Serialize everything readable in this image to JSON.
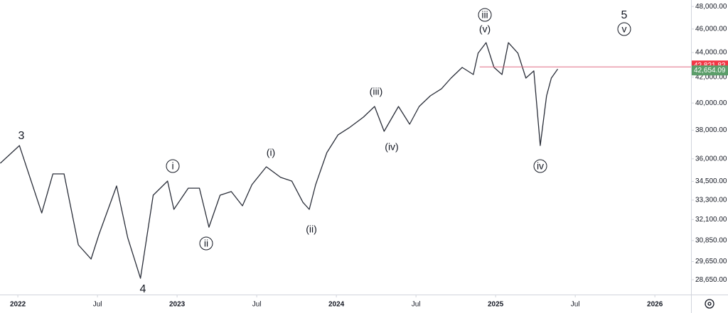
{
  "chart_data": {
    "type": "line",
    "x": [
      2021.89,
      2022.01,
      2022.15,
      2022.22,
      2022.29,
      2022.38,
      2022.46,
      2022.51,
      2022.62,
      2022.69,
      2022.77,
      2022.85,
      2022.94,
      2022.98,
      2023.07,
      2023.14,
      2023.2,
      2023.27,
      2023.34,
      2023.41,
      2023.47,
      2023.56,
      2023.65,
      2023.72,
      2023.79,
      2023.83,
      2023.87,
      2023.94,
      2024.01,
      2024.08,
      2024.17,
      2024.24,
      2024.3,
      2024.39,
      2024.46,
      2024.52,
      2024.59,
      2024.66,
      2024.72,
      2024.79,
      2024.86,
      2024.89,
      2024.94,
      2024.99,
      2025.04,
      2025.08,
      2025.14,
      2025.19,
      2025.24,
      2025.28,
      2025.32,
      2025.35,
      2025.39
    ],
    "series": [
      {
        "color": "#2a2e39",
        "values": [
          35700,
          36910,
          32500,
          34990,
          34990,
          30600,
          29790,
          31220,
          34200,
          31010,
          28730,
          33610,
          34520,
          32720,
          34060,
          34060,
          31640,
          33610,
          33840,
          32940,
          34290,
          35460,
          34760,
          34520,
          33160,
          32720,
          34290,
          36420,
          37660,
          38170,
          38950,
          39740,
          37920,
          39740,
          38430,
          39740,
          40550,
          41090,
          41930,
          42780,
          42210,
          43950,
          44830,
          42780,
          42210,
          44830,
          43950,
          41930,
          42500,
          36910,
          40550,
          41930,
          42654.09
        ]
      }
    ],
    "log_scale": true,
    "xlim": [
      2021.888,
      2026.227
    ],
    "xticks": [
      {
        "value": 2022,
        "label": "2022"
      },
      {
        "value": 2022.5,
        "label": "Jul"
      },
      {
        "value": 2023,
        "label": "2023"
      },
      {
        "value": 2023.5,
        "label": "Jul"
      },
      {
        "value": 2024,
        "label": "2024"
      },
      {
        "value": 2024.5,
        "label": "Jul"
      },
      {
        "value": 2025,
        "label": "2025"
      },
      {
        "value": 2025.5,
        "label": "Jul"
      },
      {
        "value": 2026,
        "label": "2026"
      }
    ],
    "ylim": [
      27860,
      48590
    ],
    "yticks": [
      {
        "value": 48000,
        "label": "48,000.00"
      },
      {
        "value": 46000,
        "label": "46,000.00"
      },
      {
        "value": 44000,
        "label": "44,000.00"
      },
      {
        "value": 42000,
        "label": "42,000.00"
      },
      {
        "value": 40000,
        "label": "40,000.00"
      },
      {
        "value": 38000,
        "label": "38,000.00"
      },
      {
        "value": 36000,
        "label": "36,000.00"
      },
      {
        "value": 34500,
        "label": "34,500.00"
      },
      {
        "value": 33300,
        "label": "33,300.00"
      },
      {
        "value": 32100,
        "label": "32,100.00"
      },
      {
        "value": 30850,
        "label": "30,850.00"
      },
      {
        "value": 29650,
        "label": "29,650.00"
      },
      {
        "value": 28650,
        "label": "28,650.00"
      }
    ],
    "price_labels": [
      {
        "value": 42821.82,
        "label": "42,821.82",
        "color": "#f23645"
      },
      {
        "value": 42654.09,
        "label": "42,654.09",
        "color": "#5b9e6a"
      }
    ],
    "annotations": [
      "3",
      "4",
      "5",
      "i",
      "ii",
      "iii",
      "iv",
      "v",
      "(i)",
      "(ii)",
      "(iii)",
      "(iv)",
      "(v)"
    ]
  }
}
